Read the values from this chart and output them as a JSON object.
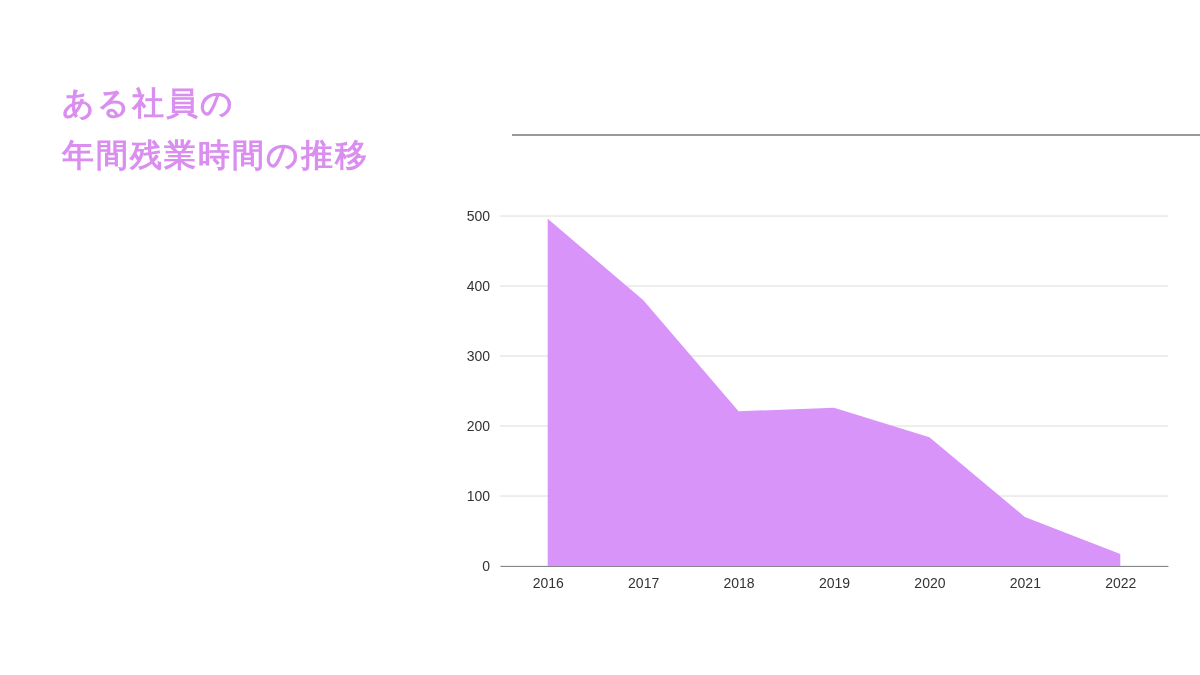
{
  "chart_data": {
    "type": "area",
    "title": "ある社員の",
    "subtitle": "年間残業時間の推移",
    "categories": [
      "2016",
      "2017",
      "2018",
      "2019",
      "2020",
      "2021",
      "2022"
    ],
    "values": [
      496,
      380,
      221,
      226,
      184,
      70,
      17
    ],
    "color": "#d894f8",
    "ylim": [
      0,
      500
    ],
    "yticks": [
      0,
      100,
      200,
      300,
      400,
      500
    ],
    "grid": "y"
  }
}
